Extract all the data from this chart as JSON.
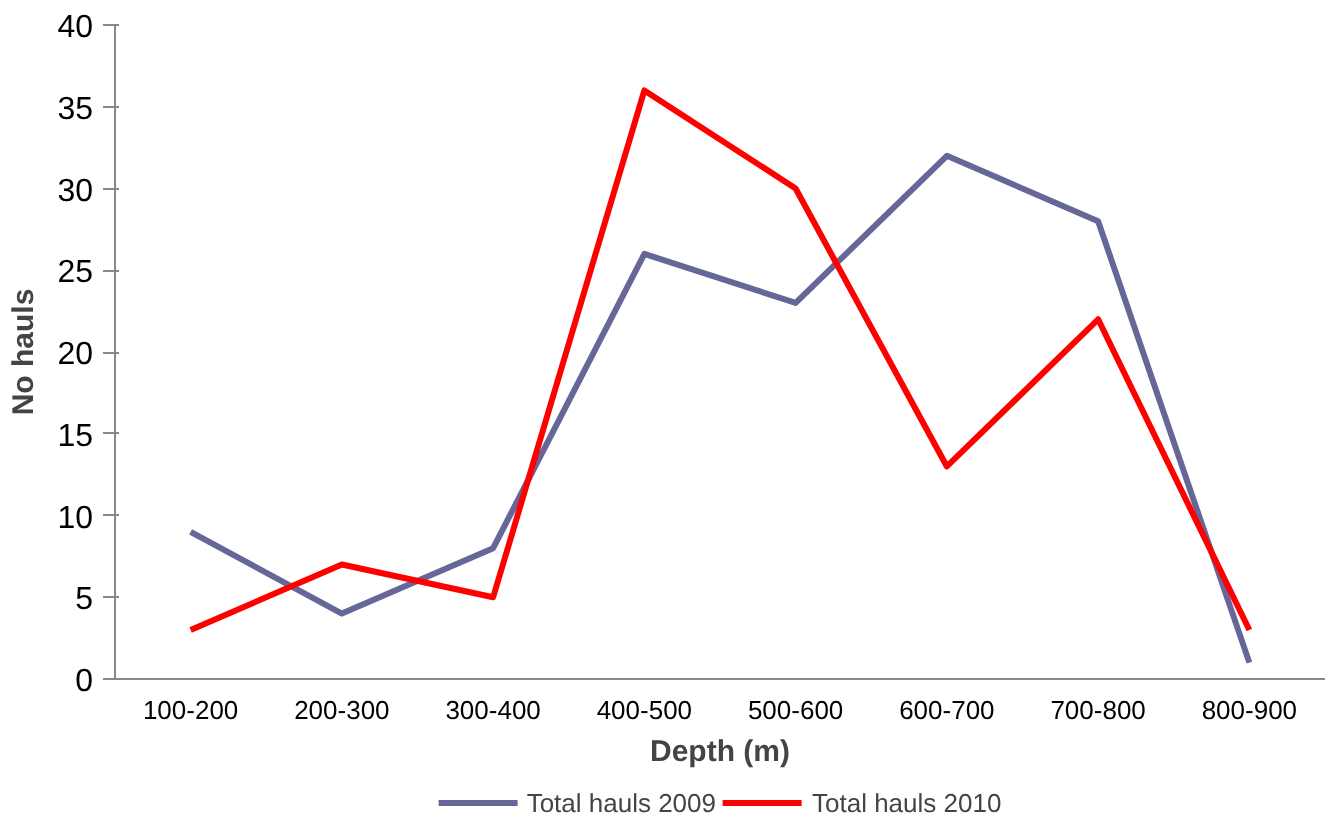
{
  "chart_data": {
    "type": "line",
    "xlabel": "Depth (m)",
    "ylabel": "No hauls",
    "categories": [
      "100-200",
      "200-300",
      "300-400",
      "400-500",
      "500-600",
      "600-700",
      "700-800",
      "800-900"
    ],
    "series": [
      {
        "name": "Total hauls 2009",
        "color": "#666699",
        "values": [
          9,
          4,
          8,
          26,
          23,
          32,
          28,
          1
        ]
      },
      {
        "name": "Total hauls 2010",
        "color": "#ff0000",
        "values": [
          3,
          7,
          5,
          36,
          30,
          13,
          22,
          3
        ]
      }
    ],
    "ylim": [
      0,
      40
    ],
    "yticks": [
      0,
      5,
      10,
      15,
      20,
      25,
      30,
      35,
      40
    ],
    "grid": false,
    "legend": "bottom",
    "marker": "none",
    "line_style": "solid"
  }
}
